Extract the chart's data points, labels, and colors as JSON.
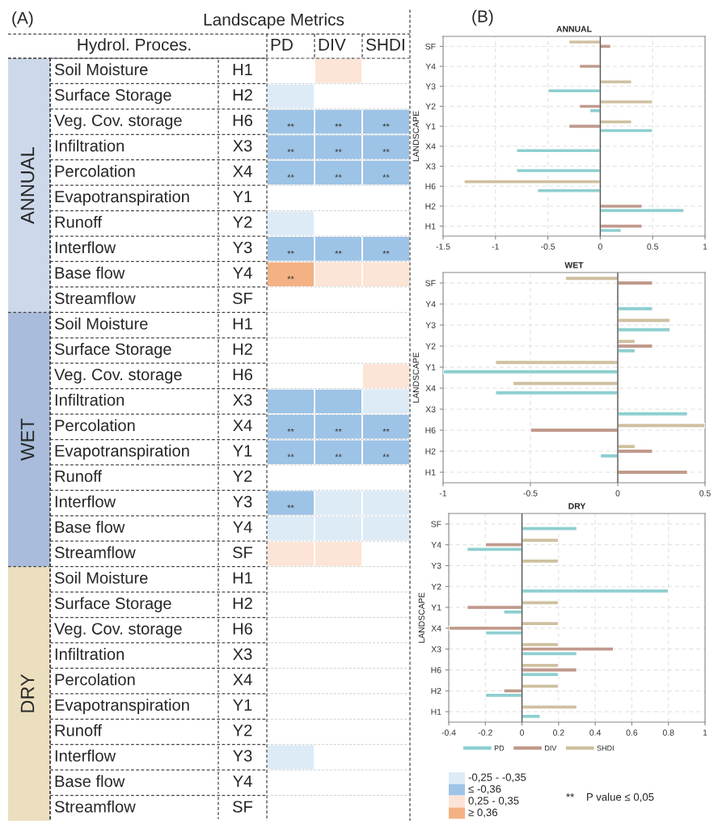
{
  "chart_data": [
    {
      "type": "other",
      "title": "Landscape Metrics",
      "annotations": [
        "(A)"
      ],
      "xlabel": "Hydrol. Proces.",
      "categories": [
        "PD",
        "DIV",
        "SHDI"
      ],
      "y_categories": [
        "Soil Moisture",
        "Surface Storage",
        "Veg. Cov. storage",
        "Infiltration",
        "Percolation",
        "Evapotranspiration",
        "Runoff",
        "Interflow",
        "Base flow",
        "Streamflow"
      ],
      "y2_categories": [
        "H1",
        "H2",
        "H6",
        "X3",
        "X4",
        "Y1",
        "Y2",
        "Y3",
        "Y4",
        "SF"
      ],
      "colors": [
        [
          null,
          "#fce4d6",
          null
        ],
        [
          "#ddebf7",
          null,
          null
        ],
        [
          "#9dc3e6",
          "#9dc3e6",
          "#9dc3e6"
        ],
        [
          "#9dc3e6",
          "#9dc3e6",
          "#9dc3e6"
        ],
        [
          "#9dc3e6",
          "#9dc3e6",
          "#9dc3e6"
        ],
        [
          null,
          null,
          null
        ],
        [
          "#ddebf7",
          null,
          null
        ],
        [
          "#9dc3e6",
          "#9dc3e6",
          "#9dc3e6"
        ],
        [
          "#f4b183",
          "#fce4d6",
          "#fce4d6"
        ],
        [
          null,
          null,
          null
        ]
      ],
      "cell_labels": [
        [
          null,
          null,
          null
        ],
        [
          null,
          null,
          null
        ],
        [
          "**",
          "**",
          "**"
        ],
        [
          "**",
          "**",
          "**"
        ],
        [
          "**",
          "**",
          "**"
        ],
        [
          null,
          null,
          null
        ],
        [
          null,
          null,
          null
        ],
        [
          "**",
          "**",
          "**"
        ],
        [
          "**",
          null,
          null
        ],
        [
          null,
          null,
          null
        ]
      ],
      "bands": [
        {
          "axis": "y",
          "label": "ANNUAL",
          "color": "#cdd9ea"
        }
      ]
    },
    {
      "type": "other",
      "categories": [
        null,
        null,
        null
      ],
      "y_categories": [
        "Soil Moisture",
        "Surface Storage",
        "Veg. Cov. storage",
        "Infiltration",
        "Percolation",
        "Evapotranspiration",
        "Runoff",
        "Interflow",
        "Base flow",
        "Streamflow"
      ],
      "y2_categories": [
        "H1",
        "H2",
        "H6",
        "X3",
        "X4",
        "Y1",
        "Y2",
        "Y3",
        "Y4",
        "SF"
      ],
      "colors": [
        [
          null,
          null,
          null
        ],
        [
          null,
          null,
          null
        ],
        [
          null,
          null,
          "#fce4d6"
        ],
        [
          "#9dc3e6",
          "#9dc3e6",
          "#ddebf7"
        ],
        [
          "#9dc3e6",
          "#9dc3e6",
          "#9dc3e6"
        ],
        [
          "#9dc3e6",
          "#9dc3e6",
          "#9dc3e6"
        ],
        [
          null,
          null,
          null
        ],
        [
          "#9dc3e6",
          "#ddebf7",
          "#ddebf7"
        ],
        [
          "#ddebf7",
          "#ddebf7",
          "#ddebf7"
        ],
        [
          "#fce4d6",
          "#fce4d6",
          null
        ]
      ],
      "cell_labels": [
        [
          null,
          null,
          null
        ],
        [
          null,
          null,
          null
        ],
        [
          null,
          null,
          null
        ],
        [
          null,
          null,
          null
        ],
        [
          "**",
          "**",
          "**"
        ],
        [
          "**",
          "**",
          "**"
        ],
        [
          null,
          null,
          null
        ],
        [
          "**",
          null,
          null
        ],
        [
          null,
          null,
          null
        ],
        [
          null,
          null,
          null
        ]
      ],
      "bands": [
        {
          "axis": "y",
          "label": "WET",
          "color": "#a9bcdb"
        }
      ]
    },
    {
      "type": "other",
      "categories": [
        null,
        null,
        null
      ],
      "y_categories": [
        "Soil Moisture",
        "Surface Storage",
        "Veg. Cov. storage",
        "Infiltration",
        "Percolation",
        "Evapotranspiration",
        "Runoff",
        "Interflow",
        "Base flow",
        "Streamflow"
      ],
      "y2_categories": [
        "H1",
        "H2",
        "H6",
        "X3",
        "X4",
        "Y1",
        "Y2",
        "Y3",
        "Y4",
        "SF"
      ],
      "colors": [
        [
          null,
          null,
          null
        ],
        [
          null,
          null,
          null
        ],
        [
          null,
          null,
          null
        ],
        [
          null,
          null,
          null
        ],
        [
          null,
          null,
          null
        ],
        [
          null,
          null,
          null
        ],
        [
          null,
          null,
          null
        ],
        [
          "#ddebf7",
          null,
          null
        ],
        [
          null,
          null,
          null
        ],
        [
          null,
          null,
          null
        ]
      ],
      "bands": [
        {
          "axis": "y",
          "label": "DRY",
          "color": "#ebdfbf"
        }
      ]
    },
    {
      "type": "bar",
      "orientation": "horizontal",
      "title": "ANNUAL",
      "annotations": [
        "(B)"
      ],
      "ylabel": "LANDSCAPE",
      "categories": [
        "SF",
        "Y4",
        "Y3",
        "Y2",
        "Y1",
        "X4",
        "X3",
        "H6",
        "H2",
        "H1"
      ],
      "xlim": [
        -1.5,
        1
      ],
      "xticks": [
        -1.5,
        -1,
        -0.5,
        0,
        0.5,
        1
      ],
      "grid": true,
      "ref_lines": [
        {
          "axis": "x",
          "value": 0,
          "color": "#555555"
        }
      ],
      "series": [
        {
          "color": "#8ecfd0",
          "values": [
            null,
            null,
            -0.5,
            -0.1,
            0.5,
            -0.8,
            -0.8,
            -0.6,
            0.8,
            0.2
          ]
        },
        {
          "color": "#c19a8c",
          "values": [
            0.1,
            -0.2,
            null,
            -0.2,
            -0.3,
            null,
            null,
            null,
            0.4,
            0.4
          ]
        },
        {
          "color": "#cfc0a0",
          "values": [
            -0.3,
            null,
            0.3,
            0.5,
            0.3,
            null,
            null,
            -1.3,
            null,
            null
          ]
        }
      ]
    },
    {
      "type": "bar",
      "orientation": "horizontal",
      "title": "WET",
      "ylabel": "LANDSCAPE",
      "categories": [
        "SF",
        "Y4",
        "Y3",
        "Y2",
        "Y1",
        "X4",
        "X3",
        "H6",
        "H2",
        "H1"
      ],
      "xlim": [
        -1,
        0.5
      ],
      "xticks": [
        -1,
        -0.5,
        0,
        0.5
      ],
      "grid": true,
      "ref_lines": [
        {
          "axis": "x",
          "value": 0,
          "color": "#555555"
        }
      ],
      "series": [
        {
          "color": "#8ecfd0",
          "values": [
            null,
            0.2,
            0.3,
            0.1,
            -1,
            -0.7,
            0.4,
            null,
            -0.1,
            null
          ]
        },
        {
          "color": "#c19a8c",
          "values": [
            0.2,
            null,
            null,
            0.2,
            null,
            null,
            null,
            -0.5,
            0.2,
            0.4
          ]
        },
        {
          "color": "#cfc0a0",
          "values": [
            -0.3,
            null,
            0.3,
            0.1,
            -0.7,
            -0.6,
            null,
            0.5,
            0.1,
            null
          ]
        }
      ]
    },
    {
      "type": "bar",
      "orientation": "horizontal",
      "title": "DRY",
      "ylabel": "LANDSCAPE",
      "categories": [
        "SF",
        "Y4",
        "Y3",
        "Y2",
        "Y1",
        "X4",
        "X3",
        "H6",
        "H2",
        "H1"
      ],
      "xlim": [
        -0.4,
        1
      ],
      "xticks": [
        -0.4,
        -0.2,
        0,
        0.2,
        0.4,
        0.6,
        0.8,
        1
      ],
      "grid": true,
      "legend": "bottom",
      "ref_lines": [
        {
          "axis": "x",
          "value": 0,
          "color": "#555555"
        }
      ],
      "series": [
        {
          "name": "PD",
          "color": "#8ecfd0",
          "values": [
            0.3,
            -0.3,
            null,
            0.8,
            -0.1,
            -0.2,
            0.3,
            0.2,
            -0.2,
            0.1
          ]
        },
        {
          "name": "DIV",
          "color": "#c19a8c",
          "values": [
            null,
            -0.2,
            null,
            null,
            -0.3,
            -0.4,
            0.5,
            0.3,
            -0.1,
            null
          ]
        },
        {
          "name": "SHDI",
          "color": "#cfc0a0",
          "values": [
            null,
            0.2,
            0.2,
            null,
            0.2,
            0.2,
            0.2,
            0.2,
            0.2,
            0.3
          ]
        }
      ]
    },
    {
      "type": "other",
      "annotations": [
        "**",
        "P value ≤ 0,05"
      ],
      "series": [
        {
          "name": "-0,25 - -0,35",
          "color": "#ddebf7"
        },
        {
          "name": "≤ -0,36",
          "color": "#9dc3e6"
        },
        {
          "name": "0,25 - 0,35",
          "color": "#fce4d6"
        },
        {
          "name": "≥ 0,36",
          "color": "#f4b183"
        }
      ]
    }
  ]
}
